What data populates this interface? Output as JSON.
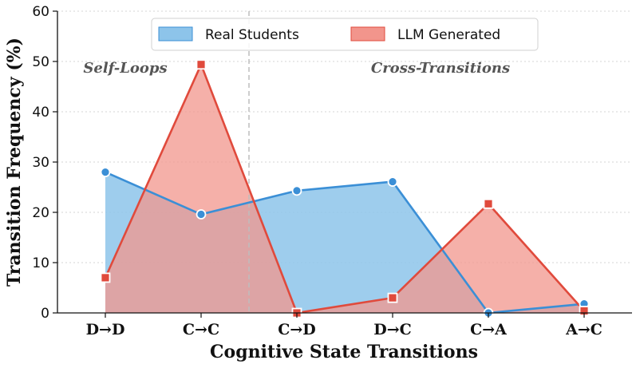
{
  "chart_data": {
    "type": "area",
    "categories": [
      "D→D",
      "C→C",
      "C→D",
      "D→C",
      "C→A",
      "A→C"
    ],
    "series": [
      {
        "name": "Real Students",
        "values": [
          28.0,
          19.6,
          24.3,
          26.1,
          0.0,
          1.8
        ],
        "color": "#3b8fd6",
        "fill": "#8dc4ea",
        "marker": "circle"
      },
      {
        "name": "LLM Generated",
        "values": [
          7.0,
          49.4,
          0.0,
          3.0,
          21.7,
          0.4
        ],
        "color": "#e04a3c",
        "fill": "#f2958c",
        "marker": "square"
      }
    ],
    "xlabel": "Cognitive State Transitions",
    "ylabel": "Transition Frequency (%)",
    "ylim": [
      0,
      60
    ],
    "yticks": [
      0,
      10,
      20,
      30,
      40,
      50,
      60
    ],
    "grid": "horizontal-dotted",
    "legend_position": "top-center",
    "annotations": [
      {
        "text": "Self-Loops",
        "region": "left"
      },
      {
        "text": "Cross-Transitions",
        "region": "right"
      }
    ],
    "divider_between": [
      "C→C",
      "C→D"
    ]
  }
}
